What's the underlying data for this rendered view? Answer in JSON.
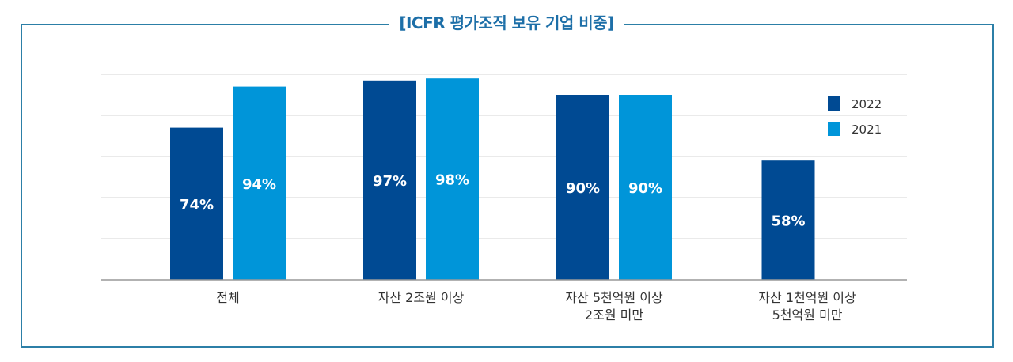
{
  "chart_data": {
    "type": "bar",
    "title": "[ICFR 평가조직 보유 기업 비중]",
    "categories": [
      [
        "전체"
      ],
      [
        "자산 2조원 이상"
      ],
      [
        "자산 5천억원 이상",
        "2조원 미만"
      ],
      [
        "자산 1천억원 이상",
        "5천억원 미만"
      ]
    ],
    "series": [
      {
        "name": "2022",
        "color": "#004a93",
        "values": [
          74,
          97,
          90,
          58
        ],
        "labels": [
          "74%",
          "97%",
          "90%",
          "58%"
        ]
      },
      {
        "name": "2021",
        "color": "#0095d9",
        "values": [
          94,
          98,
          90,
          null
        ],
        "labels": [
          "94%",
          "98%",
          "90%",
          ""
        ]
      }
    ],
    "ylim": [
      0,
      100
    ],
    "grid": true,
    "legend_position": "top-right",
    "frame_color": "#2c7fa7",
    "title_color": "#1d6fa8"
  }
}
